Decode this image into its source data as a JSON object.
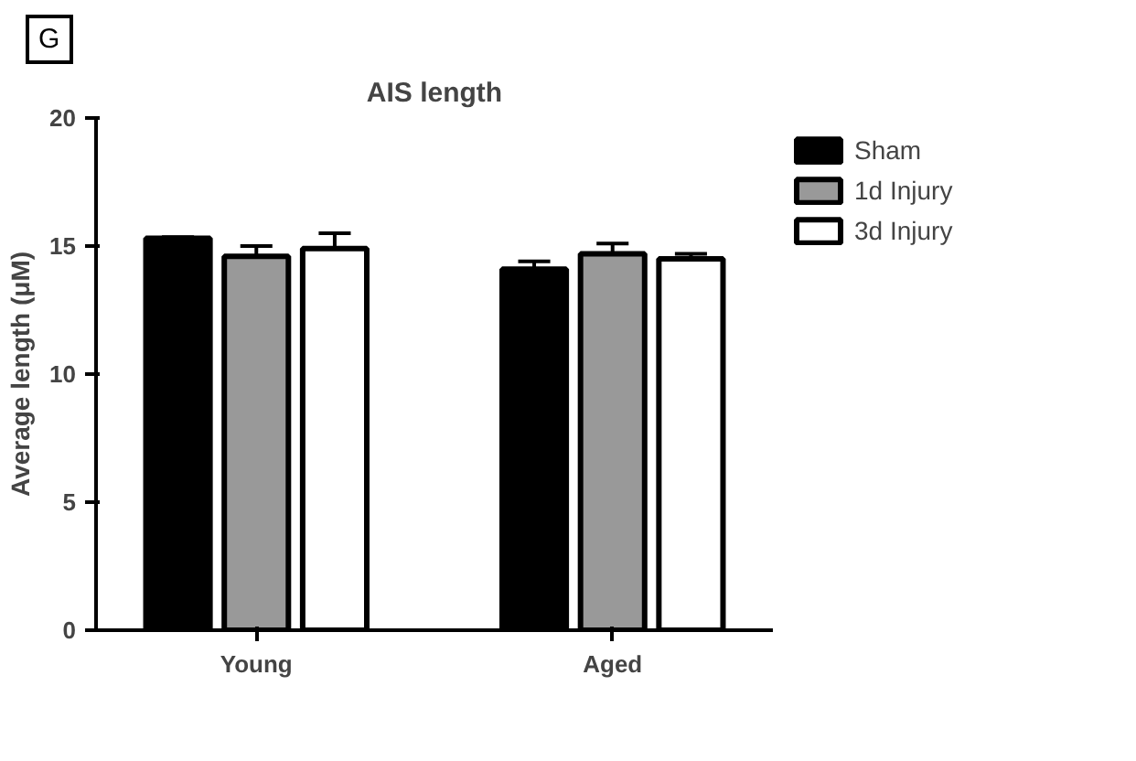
{
  "chart_data": {
    "type": "bar",
    "title": "AIS length",
    "ylabel": "Average length (μM)",
    "annotations": [
      "G"
    ],
    "categories": [
      "Young",
      "Aged"
    ],
    "series": [
      {
        "name": "Sham",
        "color": "#000000",
        "values": [
          15.3,
          14.1
        ],
        "errors": [
          [
            15.3,
            15.35
          ],
          [
            14.1,
            14.4
          ]
        ]
      },
      {
        "name": "1d Injury",
        "color": "#999999",
        "values": [
          14.6,
          14.7
        ],
        "errors": [
          [
            14.6,
            15.0
          ],
          [
            14.7,
            15.1
          ]
        ]
      },
      {
        "name": "3d Injury",
        "color": "#ffffff",
        "values": [
          14.9,
          14.5
        ],
        "errors": [
          [
            14.9,
            15.5
          ],
          [
            14.5,
            14.7
          ]
        ]
      }
    ],
    "ylim": [
      0,
      20
    ],
    "yticks": [
      0,
      5,
      10,
      15,
      20
    ],
    "grid": false,
    "legend": "right"
  }
}
